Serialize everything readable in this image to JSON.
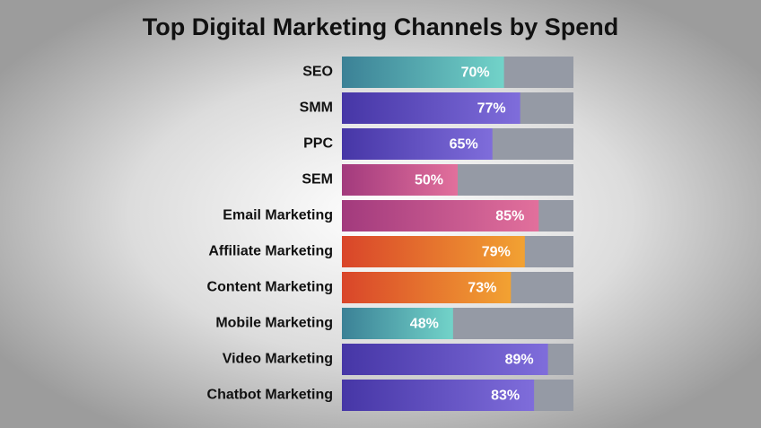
{
  "chart_data": {
    "type": "bar",
    "orientation": "horizontal",
    "title": "Top Digital Marketing Channels by Spend",
    "categories": [
      "SEO",
      "SMM",
      "PPC",
      "SEM",
      "Email Marketing",
      "Affiliate Marketing",
      "Content Marketing",
      "Mobile Marketing",
      "Video Marketing",
      "Chatbot Marketing"
    ],
    "values": [
      70,
      77,
      65,
      50,
      85,
      79,
      73,
      48,
      89,
      83
    ],
    "value_labels": [
      "70%",
      "77%",
      "65%",
      "50%",
      "85%",
      "79%",
      "73%",
      "48%",
      "89%",
      "83%"
    ],
    "colors": [
      [
        "#3b8196",
        "#72d3c9"
      ],
      [
        "#4636a6",
        "#7f6ddb"
      ],
      [
        "#4636a6",
        "#7f6ddb"
      ],
      [
        "#a23a7d",
        "#e2709c"
      ],
      [
        "#a23a7d",
        "#e2709c"
      ],
      [
        "#d9452a",
        "#f2a232"
      ],
      [
        "#d9452a",
        "#f2a232"
      ],
      [
        "#3b8196",
        "#72d3c9"
      ],
      [
        "#4636a6",
        "#7f6ddb"
      ],
      [
        "#4636a6",
        "#7f6ddb"
      ]
    ],
    "track_color": "#959aa5",
    "xlim": [
      0,
      100
    ]
  }
}
